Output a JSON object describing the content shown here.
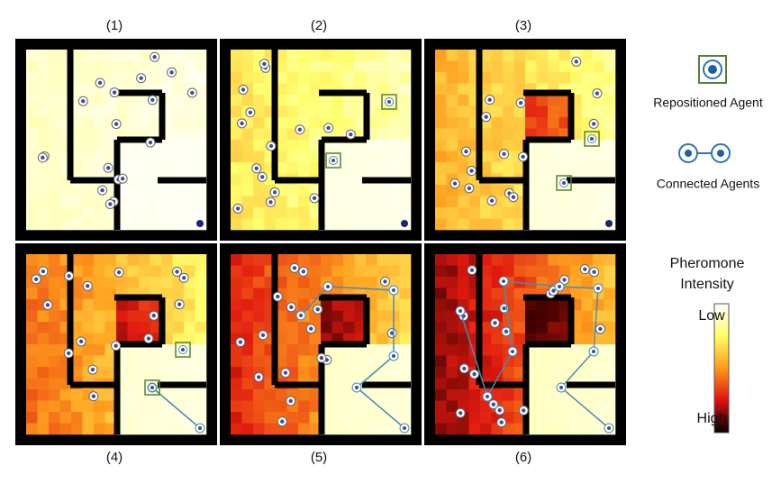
{
  "panels": [
    {
      "label": "(1)"
    },
    {
      "label": "(2)"
    },
    {
      "label": "(3)"
    },
    {
      "label": "(4)"
    },
    {
      "label": "(5)"
    },
    {
      "label": "(6)"
    }
  ],
  "legend": {
    "repositioned": "Repositioned Agent",
    "connected": "Connected Agents",
    "scale_title": [
      "Pheromone",
      "Intensity"
    ],
    "low": "Low",
    "high": "High"
  }
}
